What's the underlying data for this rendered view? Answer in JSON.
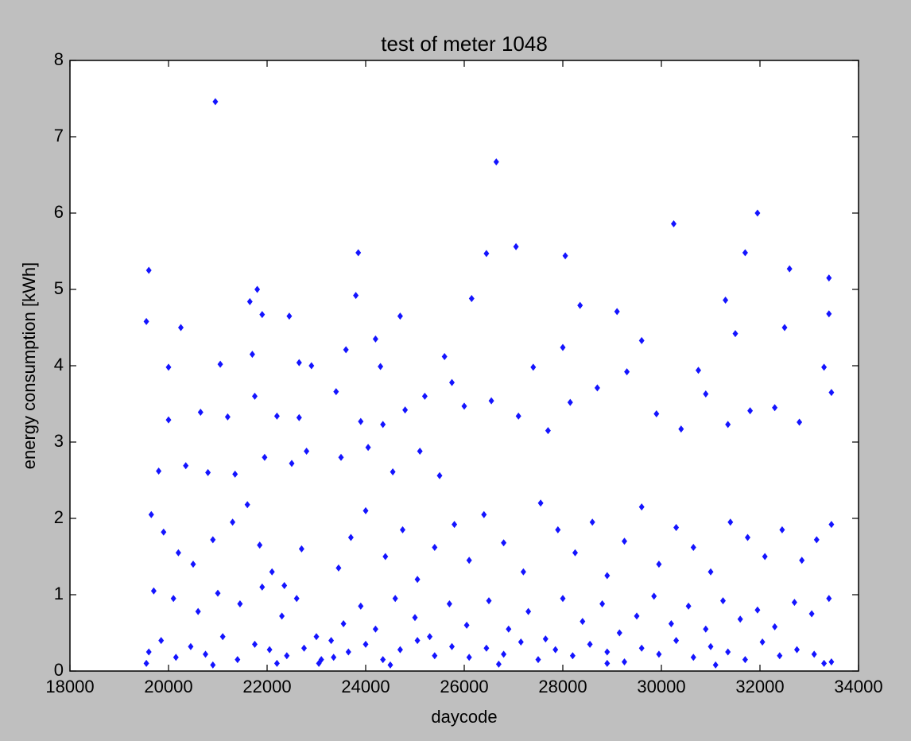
{
  "chart_data": {
    "type": "scatter",
    "title": "test of meter 1048",
    "x_label": "daycode",
    "y_label": "energy consumption [kWh]",
    "xlim": [
      18000,
      34000
    ],
    "ylim": [
      0,
      8
    ],
    "xticks": [
      18000,
      20000,
      22000,
      24000,
      26000,
      28000,
      30000,
      32000,
      34000
    ],
    "yticks": [
      0,
      1,
      2,
      3,
      4,
      5,
      6,
      7,
      8
    ],
    "grid": false,
    "marker": "diamond",
    "series": [
      {
        "color": "#1414ff",
        "x": [
          20950,
          26650,
          31950,
          30250,
          27050,
          23850,
          31700,
          26450,
          28050,
          19600,
          32600,
          33400,
          21800,
          19550,
          20250,
          21650,
          23800,
          26150,
          29100,
          31300,
          24700,
          22450,
          21900,
          28350,
          33400,
          20000,
          21050,
          21700,
          22650,
          22900,
          23600,
          24200,
          24300,
          25600,
          27400,
          28000,
          29600,
          30750,
          31500,
          32500,
          20000,
          20650,
          21200,
          21750,
          22200,
          22650,
          23400,
          23900,
          24350,
          24800,
          25200,
          25750,
          26000,
          26550,
          27100,
          27700,
          28150,
          28700,
          29300,
          29900,
          30400,
          30900,
          31350,
          31800,
          32300,
          32800,
          33300,
          33450,
          19800,
          20350,
          20800,
          21350,
          21950,
          22500,
          22800,
          23500,
          24050,
          24550,
          25100,
          25500,
          19650,
          19900,
          20200,
          20500,
          20900,
          21300,
          21600,
          21850,
          22100,
          22350,
          22700,
          23000,
          23450,
          23700,
          24000,
          24400,
          24750,
          25050,
          25400,
          25800,
          26100,
          26400,
          26800,
          27200,
          27550,
          27900,
          28250,
          28600,
          28900,
          29250,
          29600,
          29950,
          30300,
          30650,
          31000,
          31400,
          31750,
          32100,
          32450,
          32850,
          33150,
          33450,
          19700,
          20100,
          20600,
          21000,
          21450,
          21900,
          22300,
          22600,
          23100,
          23300,
          23550,
          23900,
          24200,
          24600,
          25000,
          25300,
          25700,
          26050,
          26500,
          26900,
          27300,
          27650,
          28000,
          28400,
          28800,
          29150,
          29500,
          29850,
          30200,
          30550,
          30900,
          31250,
          31600,
          31950,
          32300,
          32700,
          33050,
          33400,
          19600,
          19850,
          20150,
          20450,
          20750,
          21100,
          21400,
          21750,
          22050,
          22400,
          22750,
          23050,
          23350,
          23650,
          24000,
          24350,
          24700,
          25050,
          25400,
          25750,
          26100,
          26450,
          26800,
          27150,
          27500,
          27850,
          28200,
          28550,
          28900,
          29250,
          29600,
          29950,
          30300,
          30650,
          31000,
          31350,
          31700,
          32050,
          32400,
          32750,
          33100,
          33450,
          19550,
          20900,
          22200,
          24500,
          26700,
          28900,
          31100,
          33300
        ],
        "values": [
          7.46,
          6.67,
          6.0,
          5.86,
          5.56,
          5.48,
          5.48,
          5.47,
          5.44,
          5.25,
          5.27,
          5.15,
          5.0,
          4.58,
          4.5,
          4.84,
          4.92,
          4.88,
          4.71,
          4.86,
          4.65,
          4.65,
          4.67,
          4.79,
          4.68,
          3.98,
          4.02,
          4.15,
          4.04,
          4.0,
          4.21,
          4.35,
          3.99,
          4.12,
          3.98,
          4.24,
          4.33,
          3.94,
          4.42,
          4.5,
          3.29,
          3.39,
          3.33,
          3.6,
          3.34,
          3.32,
          3.66,
          3.27,
          3.23,
          3.42,
          3.6,
          3.78,
          3.47,
          3.54,
          3.34,
          3.15,
          3.52,
          3.71,
          3.92,
          3.37,
          3.17,
          3.63,
          3.23,
          3.41,
          3.45,
          3.26,
          3.98,
          3.65,
          2.62,
          2.69,
          2.6,
          2.58,
          2.8,
          2.72,
          2.88,
          2.8,
          2.93,
          2.61,
          2.88,
          2.56,
          2.05,
          1.82,
          1.55,
          1.4,
          1.72,
          1.95,
          2.18,
          1.65,
          1.3,
          1.12,
          1.6,
          0.45,
          1.35,
          1.75,
          2.1,
          1.5,
          1.85,
          1.2,
          1.62,
          1.92,
          1.45,
          2.05,
          1.68,
          1.3,
          2.2,
          1.85,
          1.55,
          1.95,
          1.25,
          1.7,
          2.15,
          1.4,
          1.88,
          1.62,
          1.3,
          1.95,
          1.75,
          1.5,
          1.85,
          1.45,
          1.72,
          1.92,
          1.05,
          0.95,
          0.78,
          1.02,
          0.88,
          1.1,
          0.72,
          0.95,
          0.15,
          0.4,
          0.62,
          0.85,
          0.55,
          0.95,
          0.7,
          0.45,
          0.88,
          0.6,
          0.92,
          0.55,
          0.78,
          0.42,
          0.95,
          0.65,
          0.88,
          0.5,
          0.72,
          0.98,
          0.62,
          0.85,
          0.55,
          0.92,
          0.68,
          0.8,
          0.58,
          0.9,
          0.75,
          0.95,
          0.25,
          0.4,
          0.18,
          0.32,
          0.22,
          0.45,
          0.15,
          0.35,
          0.28,
          0.2,
          0.3,
          0.1,
          0.18,
          0.25,
          0.35,
          0.15,
          0.28,
          0.4,
          0.2,
          0.32,
          0.18,
          0.3,
          0.22,
          0.38,
          0.15,
          0.28,
          0.2,
          0.35,
          0.25,
          0.12,
          0.3,
          0.22,
          0.4,
          0.18,
          0.32,
          0.25,
          0.15,
          0.38,
          0.2,
          0.28,
          0.22,
          0.12,
          0.1,
          0.08,
          0.1,
          0.08,
          0.09,
          0.1,
          0.08,
          0.1
        ]
      }
    ]
  }
}
